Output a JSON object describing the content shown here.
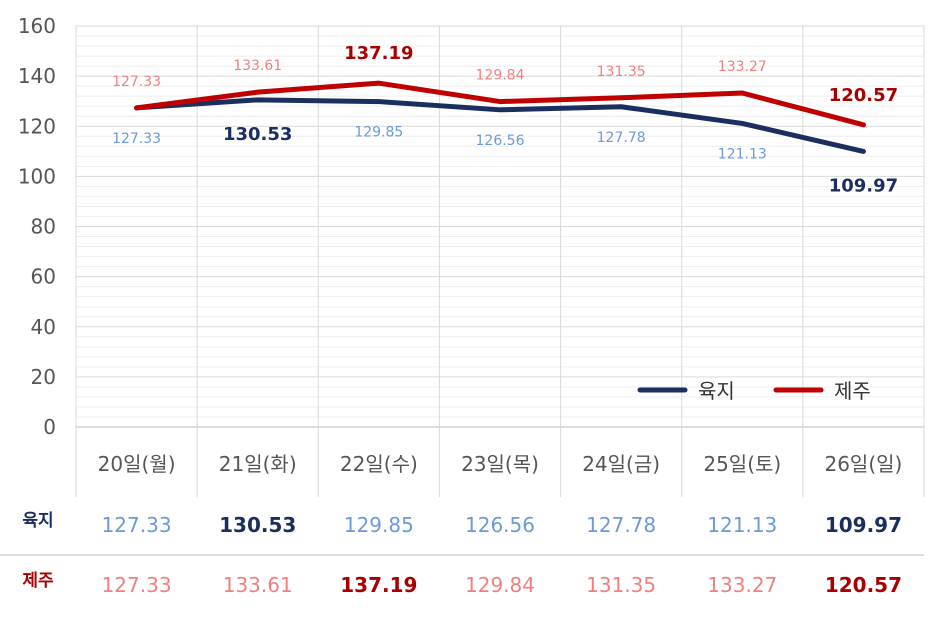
{
  "chart_data": {
    "type": "line",
    "categories": [
      "20일(월)",
      "21일(화)",
      "22일(수)",
      "23일(목)",
      "24일(금)",
      "25일(토)",
      "26일(일)"
    ],
    "ylim": [
      0,
      160
    ],
    "yticks": [
      0,
      20,
      40,
      60,
      80,
      100,
      120,
      140,
      160
    ],
    "grid": true,
    "legend_position": "bottom-right",
    "series": [
      {
        "name": "육지",
        "color": "#1a2f5e",
        "label_color": "#6a9ad8",
        "values": [
          127.33,
          130.53,
          129.85,
          126.56,
          127.78,
          121.13,
          109.97
        ],
        "labels": [
          "127.33",
          "130.53",
          "129.85",
          "126.56",
          "127.78",
          "121.13",
          "109.97"
        ],
        "bold": [
          false,
          true,
          false,
          false,
          false,
          false,
          true
        ]
      },
      {
        "name": "제주",
        "color": "#c00000",
        "label_color": "#f08080",
        "bold_color": "#a80000",
        "values": [
          127.33,
          133.61,
          137.19,
          129.84,
          131.35,
          133.27,
          120.57
        ],
        "labels": [
          "127.33",
          "133.61",
          "137.19",
          "129.84",
          "131.35",
          "133.27",
          "120.57"
        ],
        "bold": [
          false,
          false,
          true,
          false,
          false,
          false,
          true
        ]
      }
    ]
  }
}
